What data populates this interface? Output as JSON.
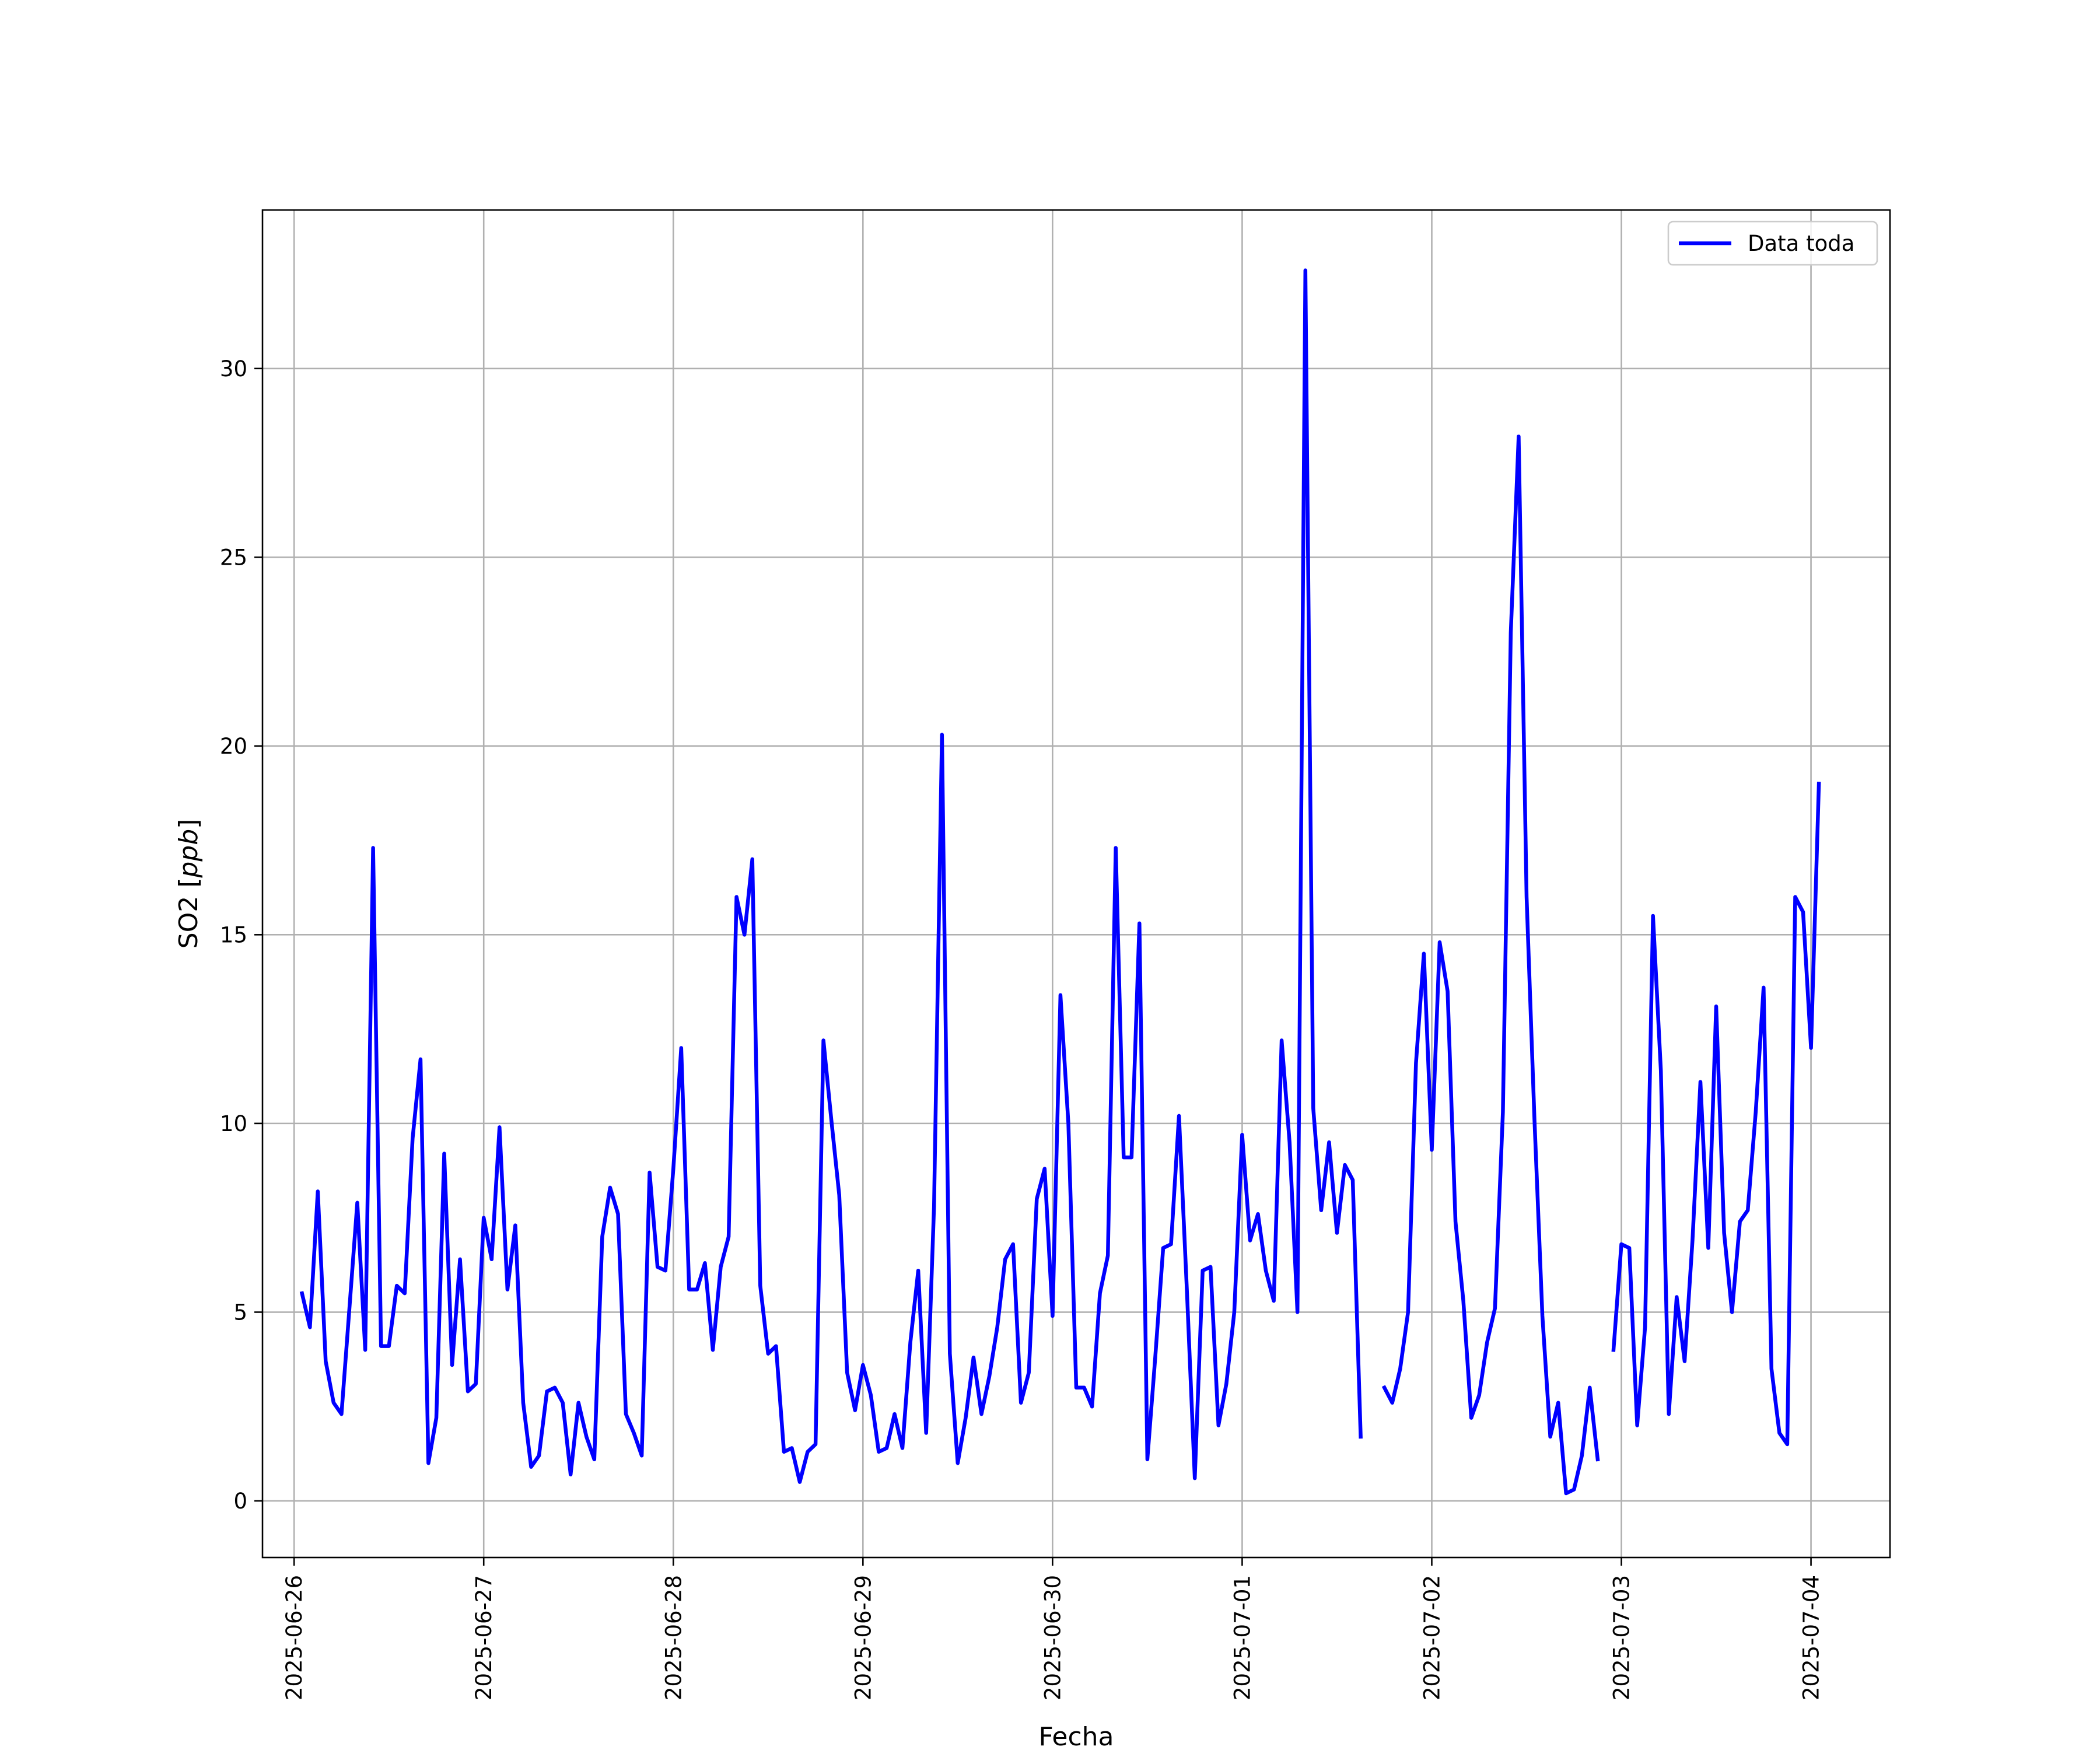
{
  "chart_data": {
    "type": "line",
    "xlabel": "Fecha",
    "ylabel": "SO2 [ppb]",
    "ylabel_parts": {
      "plain": "SO2 [",
      "math": "ppb",
      "close": "]"
    },
    "xlim": [
      "2025-06-25T20:00",
      "2025-07-04T10:00"
    ],
    "ylim": [
      -1.5,
      34.2
    ],
    "x_ticks": [
      "2025-06-26",
      "2025-06-27",
      "2025-06-28",
      "2025-06-29",
      "2025-06-30",
      "2025-07-01",
      "2025-07-02",
      "2025-07-03",
      "2025-07-04"
    ],
    "y_ticks": [
      0,
      5,
      10,
      15,
      20,
      25,
      30
    ],
    "grid": true,
    "legend_position": "top-right",
    "series": [
      {
        "name": "Data toda",
        "color": "#0000ff",
        "start": "2025-06-26T01:00",
        "interval_hours": 1,
        "values": [
          5.5,
          4.6,
          8.2,
          3.7,
          2.6,
          2.3,
          5.1,
          7.9,
          4.0,
          17.3,
          4.1,
          4.1,
          5.7,
          5.5,
          9.6,
          11.7,
          1.0,
          2.2,
          9.2,
          3.6,
          6.4,
          2.9,
          3.1,
          7.5,
          6.4,
          9.9,
          5.6,
          7.3,
          2.6,
          0.9,
          1.2,
          2.9,
          3.0,
          2.6,
          0.7,
          2.6,
          1.7,
          1.1,
          7.0,
          8.3,
          7.6,
          2.3,
          1.8,
          1.2,
          8.7,
          6.2,
          6.1,
          8.8,
          12.0,
          5.6,
          5.6,
          6.3,
          4.0,
          6.2,
          7.0,
          16.0,
          15.0,
          17.0,
          5.7,
          3.9,
          4.1,
          1.3,
          1.4,
          0.5,
          1.3,
          1.5,
          12.2,
          10.1,
          8.1,
          3.4,
          2.4,
          3.6,
          2.8,
          1.3,
          1.4,
          2.3,
          1.4,
          4.2,
          6.1,
          1.8,
          7.8,
          20.3,
          3.9,
          1.0,
          2.2,
          3.8,
          2.3,
          3.3,
          4.6,
          6.4,
          6.8,
          2.6,
          3.4,
          8.0,
          8.8,
          4.9,
          13.4,
          10.0,
          3.0,
          3.0,
          2.5,
          5.5,
          6.5,
          17.3,
          9.1,
          9.1,
          15.3,
          1.1,
          3.8,
          6.7,
          6.8,
          10.2,
          5.6,
          0.6,
          6.1,
          6.2,
          2.0,
          3.1,
          5.0,
          9.7,
          6.9,
          7.6,
          6.1,
          5.3,
          12.2,
          9.5,
          5.0,
          32.6,
          10.4,
          7.7,
          9.5,
          7.1,
          8.9,
          8.5,
          1.7,
          null,
          null,
          3.0,
          2.6,
          3.5,
          5.0,
          11.6,
          14.5,
          9.3,
          14.8,
          13.5,
          7.4,
          5.3,
          2.2,
          2.8,
          4.2,
          5.1,
          10.3,
          23.0,
          28.2,
          16.0,
          10.1,
          4.9,
          1.7,
          2.6,
          0.2,
          0.3,
          1.2,
          3.0,
          1.1,
          null,
          4.0,
          6.8,
          6.7,
          2.0,
          4.6,
          15.5,
          11.4,
          2.3,
          5.4,
          3.7,
          6.9,
          11.1,
          6.7,
          13.1,
          7.1,
          5.0,
          7.4,
          7.7,
          10.3,
          13.6,
          3.5,
          1.8,
          1.5,
          16.0,
          15.6,
          12.0,
          19.0
        ]
      }
    ]
  }
}
